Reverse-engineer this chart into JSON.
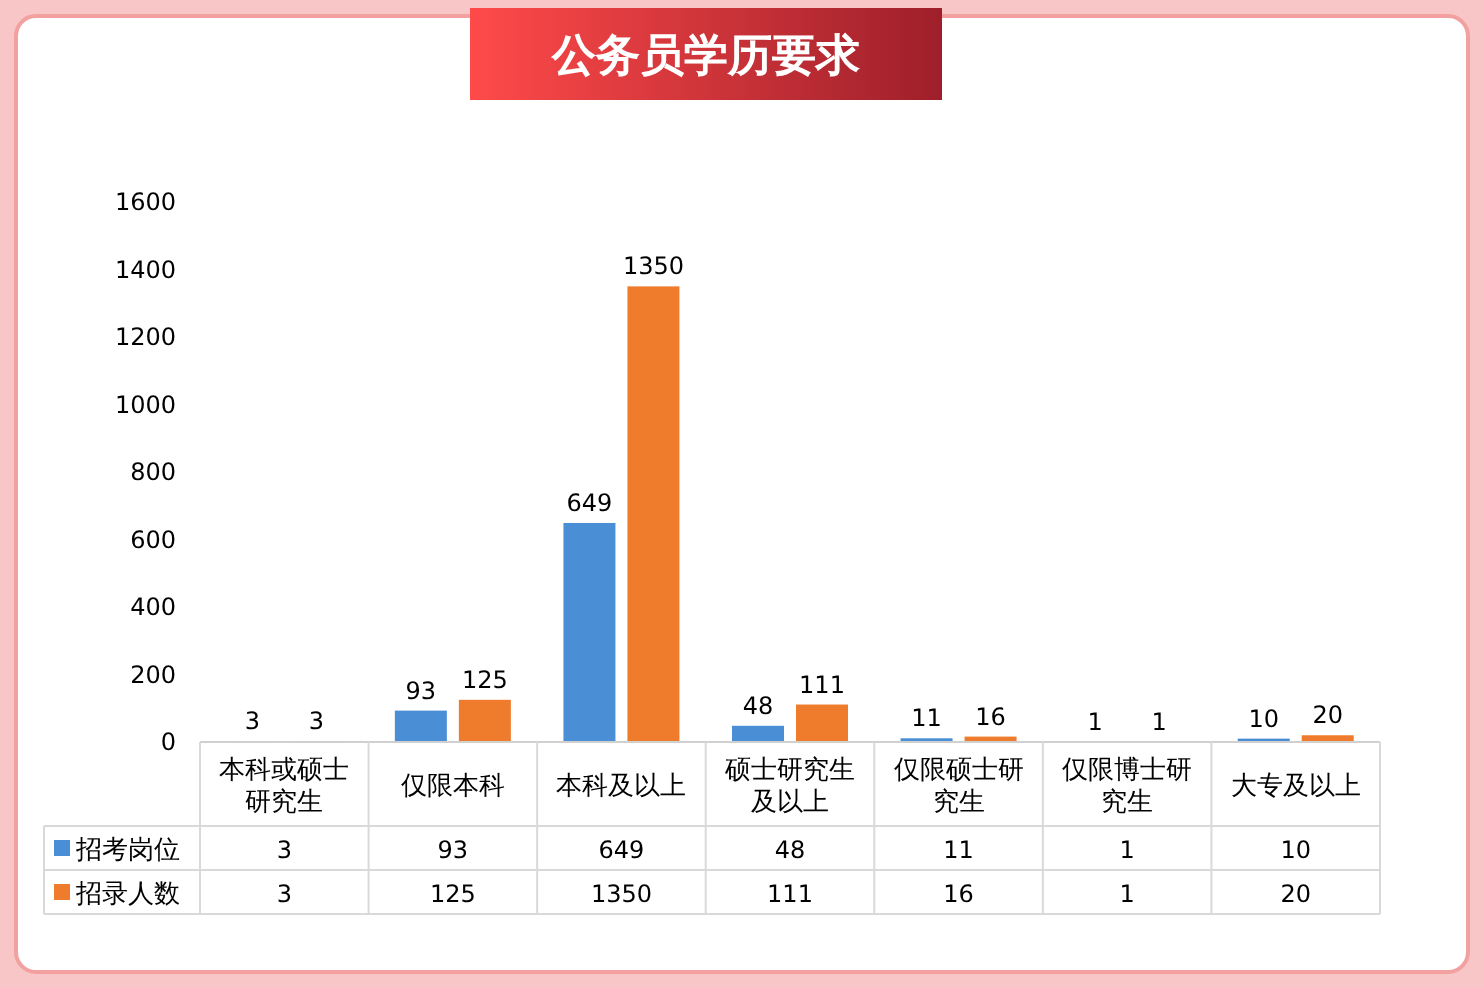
{
  "chart_data": {
    "type": "bar",
    "title": "公务员学历要求",
    "categories": [
      "本科或硕士研究生",
      "仅限本科",
      "本科及以上",
      "硕士研究生及以上",
      "仅限硕士研究生",
      "仅限博士研究生",
      "大专及以上"
    ],
    "series": [
      {
        "name": "招考岗位",
        "color": "#4a8fd6",
        "values": [
          3,
          93,
          649,
          48,
          11,
          1,
          10
        ],
        "value_labels": [
          "3",
          "93",
          "649",
          "48",
          "11",
          "1",
          "10"
        ]
      },
      {
        "name": "招录人数",
        "color": "#ef7b2c",
        "values": [
          3,
          125,
          1350,
          111,
          16,
          1,
          20
        ],
        "value_labels": [
          "3",
          "125",
          "1350",
          "111",
          "16",
          "1",
          "20"
        ]
      }
    ],
    "ylim": [
      0,
      1600
    ],
    "yticks": [
      0,
      200,
      400,
      600,
      800,
      1000,
      1200,
      1400,
      1600
    ],
    "data_labels": true,
    "legend": "bottom",
    "grid": false
  }
}
